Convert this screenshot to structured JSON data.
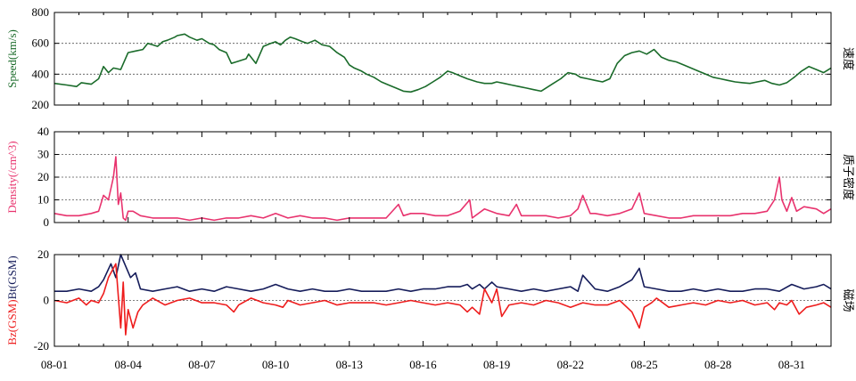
{
  "chart_data": [
    {
      "type": "line",
      "panel": "speed",
      "ylabel": "Speed(km/s)",
      "right_label": "速度",
      "ylim": [
        200,
        800
      ],
      "yticks": [
        200,
        400,
        600,
        800
      ],
      "gridlines": [
        400,
        600
      ],
      "xlim": [
        0,
        31.6
      ],
      "series": [
        {
          "name": "Speed",
          "color": "#1a6b2a",
          "x": [
            0,
            0.5,
            0.9,
            1.1,
            1.5,
            1.8,
            2.0,
            2.2,
            2.4,
            2.7,
            3.0,
            3.3,
            3.6,
            3.8,
            4.0,
            4.2,
            4.4,
            4.6,
            4.9,
            5.0,
            5.3,
            5.5,
            5.8,
            6.0,
            6.3,
            6.5,
            6.7,
            7.0,
            7.2,
            7.4,
            7.8,
            7.9,
            8.2,
            8.5,
            8.8,
            9.0,
            9.2,
            9.4,
            9.6,
            9.8,
            10.1,
            10.3,
            10.6,
            10.9,
            11.2,
            11.5,
            11.8,
            12.0,
            12.2,
            12.5,
            12.7,
            13.0,
            13.3,
            13.6,
            13.9,
            14.2,
            14.5,
            14.8,
            15.1,
            15.4,
            15.7,
            16.0,
            16.2,
            16.5,
            16.8,
            17.0,
            17.2,
            17.5,
            17.8,
            18.0,
            18.3,
            18.6,
            18.9,
            19.2,
            19.5,
            19.8,
            20.0,
            20.3,
            20.6,
            20.9,
            21.2,
            21.4,
            21.7,
            22.0,
            22.3,
            22.6,
            22.9,
            23.2,
            23.5,
            23.8,
            24.1,
            24.4,
            24.7,
            25.0,
            25.3,
            25.6,
            25.9,
            26.2,
            26.5,
            26.8,
            27.1,
            27.4,
            27.7,
            28.0,
            28.3,
            28.6,
            28.9,
            29.2,
            29.5,
            29.8,
            30.1,
            30.4,
            30.7,
            31.0,
            31.3,
            31.6
          ],
          "y": [
            340,
            330,
            320,
            345,
            335,
            370,
            450,
            410,
            440,
            430,
            540,
            550,
            560,
            600,
            590,
            580,
            610,
            620,
            640,
            650,
            660,
            640,
            620,
            630,
            600,
            590,
            560,
            540,
            470,
            480,
            500,
            530,
            470,
            580,
            600,
            610,
            590,
            620,
            640,
            630,
            610,
            600,
            620,
            590,
            580,
            540,
            510,
            460,
            440,
            420,
            400,
            380,
            350,
            330,
            310,
            290,
            285,
            300,
            320,
            350,
            380,
            420,
            410,
            390,
            370,
            360,
            350,
            340,
            340,
            350,
            340,
            330,
            320,
            310,
            300,
            290,
            310,
            340,
            370,
            410,
            400,
            380,
            370,
            360,
            350,
            370,
            470,
            520,
            540,
            550,
            530,
            560,
            510,
            490,
            480,
            460,
            440,
            420,
            400,
            380,
            370,
            360,
            350,
            345,
            340,
            350,
            360,
            340,
            330,
            345,
            380,
            420,
            450,
            430,
            410,
            440
          ]
        }
      ]
    },
    {
      "type": "line",
      "panel": "density",
      "ylabel": "Density(/cm^3)",
      "right_label": "质子密度",
      "ylim": [
        0,
        40
      ],
      "yticks": [
        0,
        10,
        20,
        30,
        40
      ],
      "gridlines": [
        10,
        20,
        30
      ],
      "xlim": [
        0,
        31.6
      ],
      "series": [
        {
          "name": "Density",
          "color": "#e8336e",
          "x": [
            0,
            0.5,
            1.0,
            1.5,
            1.8,
            2.0,
            2.2,
            2.4,
            2.5,
            2.6,
            2.7,
            2.8,
            2.9,
            3.0,
            3.2,
            3.5,
            4.0,
            4.5,
            5.0,
            5.5,
            6.0,
            6.5,
            7.0,
            7.5,
            8.0,
            8.5,
            9.0,
            9.5,
            10.0,
            10.5,
            11.0,
            11.5,
            12.0,
            12.5,
            13.0,
            13.5,
            14.0,
            14.2,
            14.5,
            15.0,
            15.5,
            16.0,
            16.5,
            16.9,
            17.0,
            17.5,
            18.0,
            18.5,
            18.8,
            19.0,
            19.5,
            20.0,
            20.5,
            21.0,
            21.3,
            21.5,
            21.8,
            22.0,
            22.5,
            23.0,
            23.5,
            23.8,
            24.0,
            24.5,
            25.0,
            25.5,
            26.0,
            26.5,
            27.0,
            27.5,
            28.0,
            28.5,
            29.0,
            29.3,
            29.5,
            29.6,
            29.8,
            30.0,
            30.2,
            30.5,
            31.0,
            31.3,
            31.6
          ],
          "y": [
            4,
            3,
            3,
            4,
            5,
            12,
            10,
            20,
            29,
            8,
            13,
            2,
            1,
            5,
            5,
            3,
            2,
            2,
            2,
            1,
            2,
            1,
            2,
            2,
            3,
            2,
            4,
            2,
            3,
            2,
            2,
            1,
            2,
            2,
            2,
            2,
            8,
            3,
            4,
            4,
            3,
            3,
            5,
            10,
            2,
            6,
            4,
            3,
            8,
            3,
            3,
            3,
            2,
            3,
            6,
            12,
            4,
            4,
            3,
            4,
            6,
            13,
            4,
            3,
            2,
            2,
            3,
            3,
            3,
            3,
            4,
            4,
            5,
            10,
            20,
            10,
            5,
            11,
            5,
            7,
            6,
            4,
            6
          ]
        }
      ]
    },
    {
      "type": "line",
      "panel": "magnetic",
      "ylabel_parts": [
        {
          "text": "Bz(GSM)",
          "color": "#ee1c1c"
        },
        {
          "text": "Bt(GSM)",
          "color": "#151c5a"
        }
      ],
      "right_label": "磁场",
      "ylim": [
        -20,
        20
      ],
      "yticks": [
        -20,
        0,
        20
      ],
      "gridlines": [
        0
      ],
      "xlim": [
        0,
        31.6
      ],
      "series": [
        {
          "name": "Bt(GSM)",
          "color": "#151c5a",
          "x": [
            0,
            0.5,
            1.0,
            1.5,
            1.8,
            2.0,
            2.3,
            2.5,
            2.7,
            2.9,
            3.1,
            3.3,
            3.5,
            4.0,
            4.5,
            5.0,
            5.5,
            6.0,
            6.5,
            7.0,
            7.5,
            8.0,
            8.5,
            9.0,
            9.5,
            10.0,
            10.5,
            11.0,
            11.5,
            12.0,
            12.5,
            13.0,
            13.5,
            14.0,
            14.5,
            15.0,
            15.5,
            16.0,
            16.5,
            16.8,
            17.0,
            17.3,
            17.5,
            17.8,
            18.0,
            18.5,
            19.0,
            19.5,
            20.0,
            20.5,
            21.0,
            21.3,
            21.5,
            22.0,
            22.5,
            23.0,
            23.5,
            23.8,
            24.0,
            24.5,
            25.0,
            25.5,
            26.0,
            26.5,
            27.0,
            27.5,
            28.0,
            28.5,
            29.0,
            29.5,
            30.0,
            30.5,
            31.0,
            31.3,
            31.6
          ],
          "y": [
            4,
            4,
            5,
            4,
            6,
            9,
            16,
            10,
            20,
            15,
            10,
            12,
            5,
            4,
            5,
            6,
            4,
            5,
            4,
            6,
            5,
            4,
            5,
            7,
            5,
            4,
            5,
            4,
            4,
            5,
            4,
            4,
            4,
            5,
            4,
            5,
            5,
            6,
            6,
            7,
            5,
            7,
            5,
            8,
            6,
            5,
            4,
            5,
            4,
            5,
            6,
            4,
            11,
            5,
            4,
            6,
            9,
            14,
            6,
            5,
            4,
            4,
            5,
            4,
            5,
            4,
            4,
            5,
            5,
            4,
            7,
            5,
            6,
            7,
            5
          ]
        },
        {
          "name": "Bz(GSM)",
          "color": "#ee1c1c",
          "x": [
            0,
            0.5,
            1.0,
            1.3,
            1.5,
            1.8,
            2.0,
            2.2,
            2.5,
            2.7,
            2.8,
            2.9,
            3.0,
            3.2,
            3.4,
            3.6,
            4.0,
            4.5,
            5.0,
            5.5,
            6.0,
            6.5,
            7.0,
            7.3,
            7.5,
            8.0,
            8.5,
            9.0,
            9.3,
            9.5,
            10.0,
            10.5,
            11.0,
            11.5,
            12.0,
            12.5,
            13.0,
            13.5,
            14.0,
            14.5,
            15.0,
            15.5,
            16.0,
            16.5,
            16.8,
            17.0,
            17.3,
            17.5,
            17.8,
            18.0,
            18.2,
            18.5,
            19.0,
            19.5,
            20.0,
            20.5,
            21.0,
            21.5,
            22.0,
            22.5,
            23.0,
            23.5,
            23.8,
            24.0,
            24.3,
            24.5,
            25.0,
            25.5,
            26.0,
            26.5,
            27.0,
            27.5,
            28.0,
            28.5,
            29.0,
            29.3,
            29.5,
            29.8,
            30.0,
            30.3,
            30.6,
            31.0,
            31.3,
            31.6
          ],
          "y": [
            0,
            -1,
            1,
            -2,
            0,
            -1,
            3,
            10,
            16,
            -12,
            8,
            -15,
            -4,
            -12,
            -5,
            -2,
            1,
            -2,
            0,
            1,
            -1,
            -1,
            -2,
            -5,
            -2,
            1,
            -1,
            -2,
            -3,
            0,
            -2,
            -1,
            0,
            -2,
            -1,
            -1,
            -1,
            -2,
            -1,
            0,
            -1,
            -2,
            -1,
            -2,
            -5,
            -3,
            -6,
            5,
            -1,
            5,
            -7,
            -2,
            -1,
            -2,
            0,
            -1,
            -3,
            -1,
            -2,
            -2,
            0,
            -5,
            -12,
            -3,
            -1,
            1,
            -3,
            -2,
            -1,
            -2,
            0,
            -1,
            0,
            -2,
            -1,
            -4,
            -1,
            -2,
            0,
            -6,
            -3,
            -2,
            -1,
            -3
          ]
        }
      ]
    }
  ],
  "xaxis": {
    "tick_positions": [
      0,
      3,
      6,
      9,
      12,
      15,
      18,
      21,
      24,
      27,
      30
    ],
    "tick_labels": [
      "08-01",
      "08-04",
      "08-07",
      "08-10",
      "08-13",
      "08-16",
      "08-19",
      "08-22",
      "08-25",
      "08-28",
      "08-31"
    ]
  }
}
